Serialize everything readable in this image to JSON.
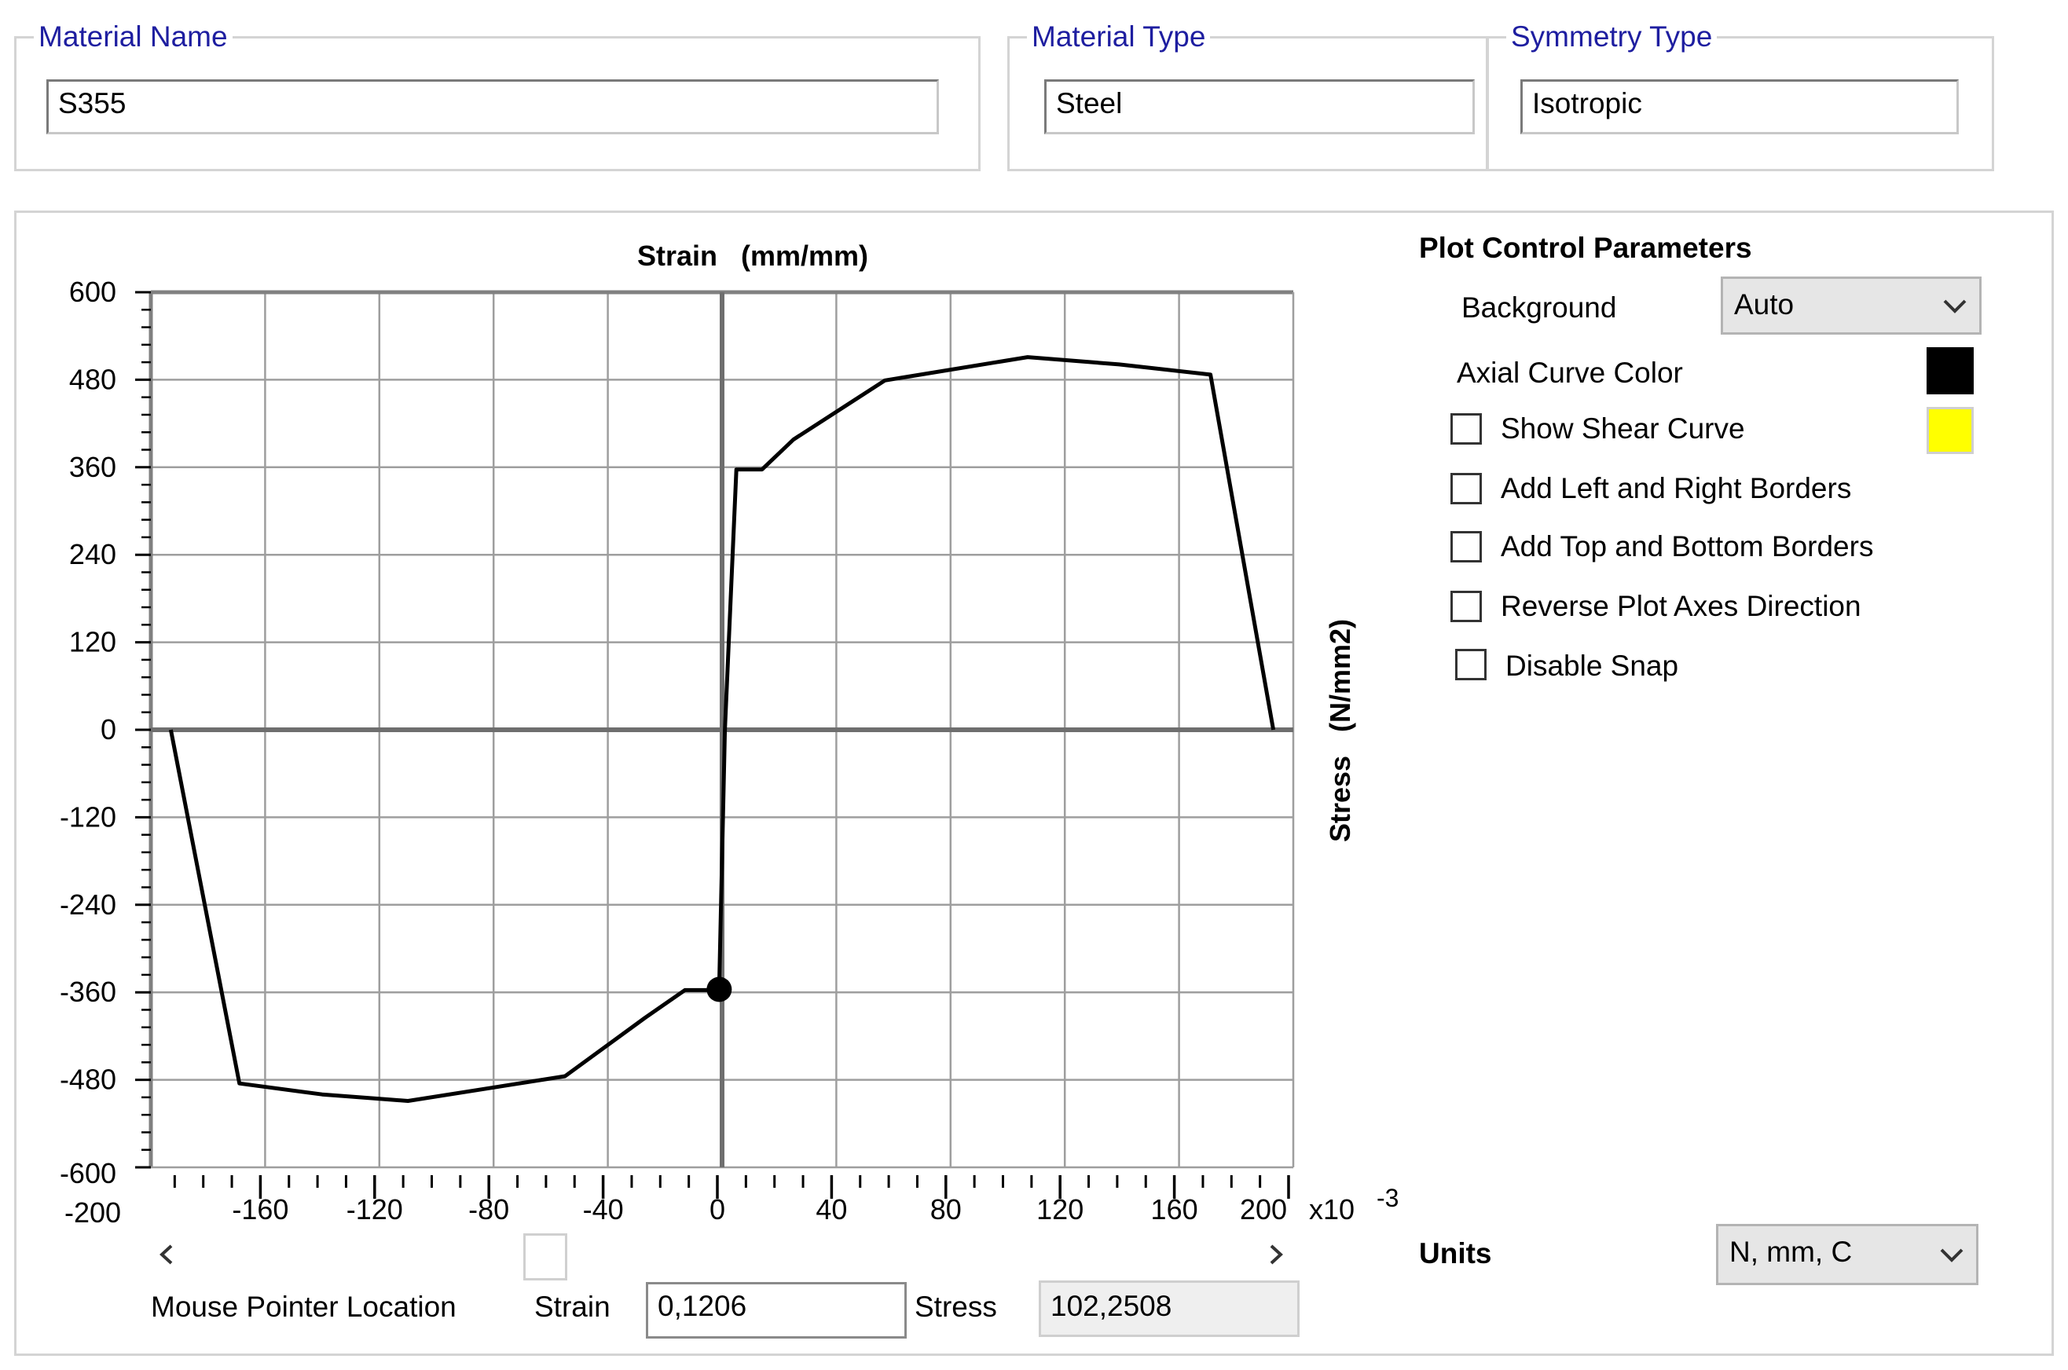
{
  "material": {
    "name_label": "Material Name",
    "name_value": "S355",
    "type_label": "Material Type",
    "type_value": "Steel",
    "symmetry_label": "Symmetry Type",
    "symmetry_value": "Isotropic"
  },
  "plot": {
    "x_axis_title": "Strain   (mm/mm)",
    "y_axis_title": "Stress   (N/mm2)",
    "x_multiplier": "x10",
    "x_exponent": "-3",
    "y_tick_labels": [
      "600",
      "480",
      "360",
      "240",
      "120",
      "0",
      "-120",
      "-240",
      "-360",
      "-480",
      "-600"
    ],
    "x_tick_labels": [
      "-200",
      "-160",
      "-120",
      "-80",
      "-40",
      "0",
      "40",
      "80",
      "120",
      "160",
      "200"
    ]
  },
  "chart_data": {
    "type": "line",
    "title": "",
    "xlabel": "Strain (mm/mm)",
    "ylabel": "Stress (N/mm2)",
    "x_scale_note": "x10 -3",
    "xlim": [
      -200,
      200
    ],
    "ylim": [
      -600,
      600
    ],
    "grid": true,
    "series": [
      {
        "color": "#000000",
        "x": [
          -193,
          -169,
          -140,
          -110,
          -55,
          -27,
          -13,
          -5,
          -1,
          1,
          5,
          14,
          25,
          57,
          107,
          139,
          171,
          193
        ],
        "y": [
          0,
          -485,
          -500,
          -509,
          -475,
          -395,
          -357,
          -357,
          -350,
          0,
          357,
          357,
          398,
          479,
          511,
          501,
          487,
          0
        ]
      }
    ],
    "marker": {
      "x": -1,
      "y": -356
    }
  },
  "controls": {
    "title": "Plot Control Parameters",
    "background_label": "Background",
    "background_value": "Auto",
    "axial_color_label": "Axial Curve Color",
    "axial_color": "#000000",
    "shear_color": "#ffff00",
    "checkboxes": [
      {
        "label": "Show Shear Curve",
        "checked": false
      },
      {
        "label": "Add Left and Right Borders",
        "checked": false
      },
      {
        "label": "Add Top and Bottom Borders",
        "checked": false
      },
      {
        "label": "Reverse Plot Axes Direction",
        "checked": false
      },
      {
        "label": "Disable Snap",
        "checked": false
      }
    ],
    "units_label": "Units",
    "units_value": "N, mm, C"
  },
  "pointer": {
    "label": "Mouse Pointer Location",
    "strain_label": "Strain",
    "strain_value": "0,1206",
    "stress_label": "Stress",
    "stress_value": "102,2508"
  },
  "scrollbar": {
    "left_icon": "chevron-left-icon",
    "right_icon": "chevron-right-icon",
    "thumb_position": 0.34
  }
}
